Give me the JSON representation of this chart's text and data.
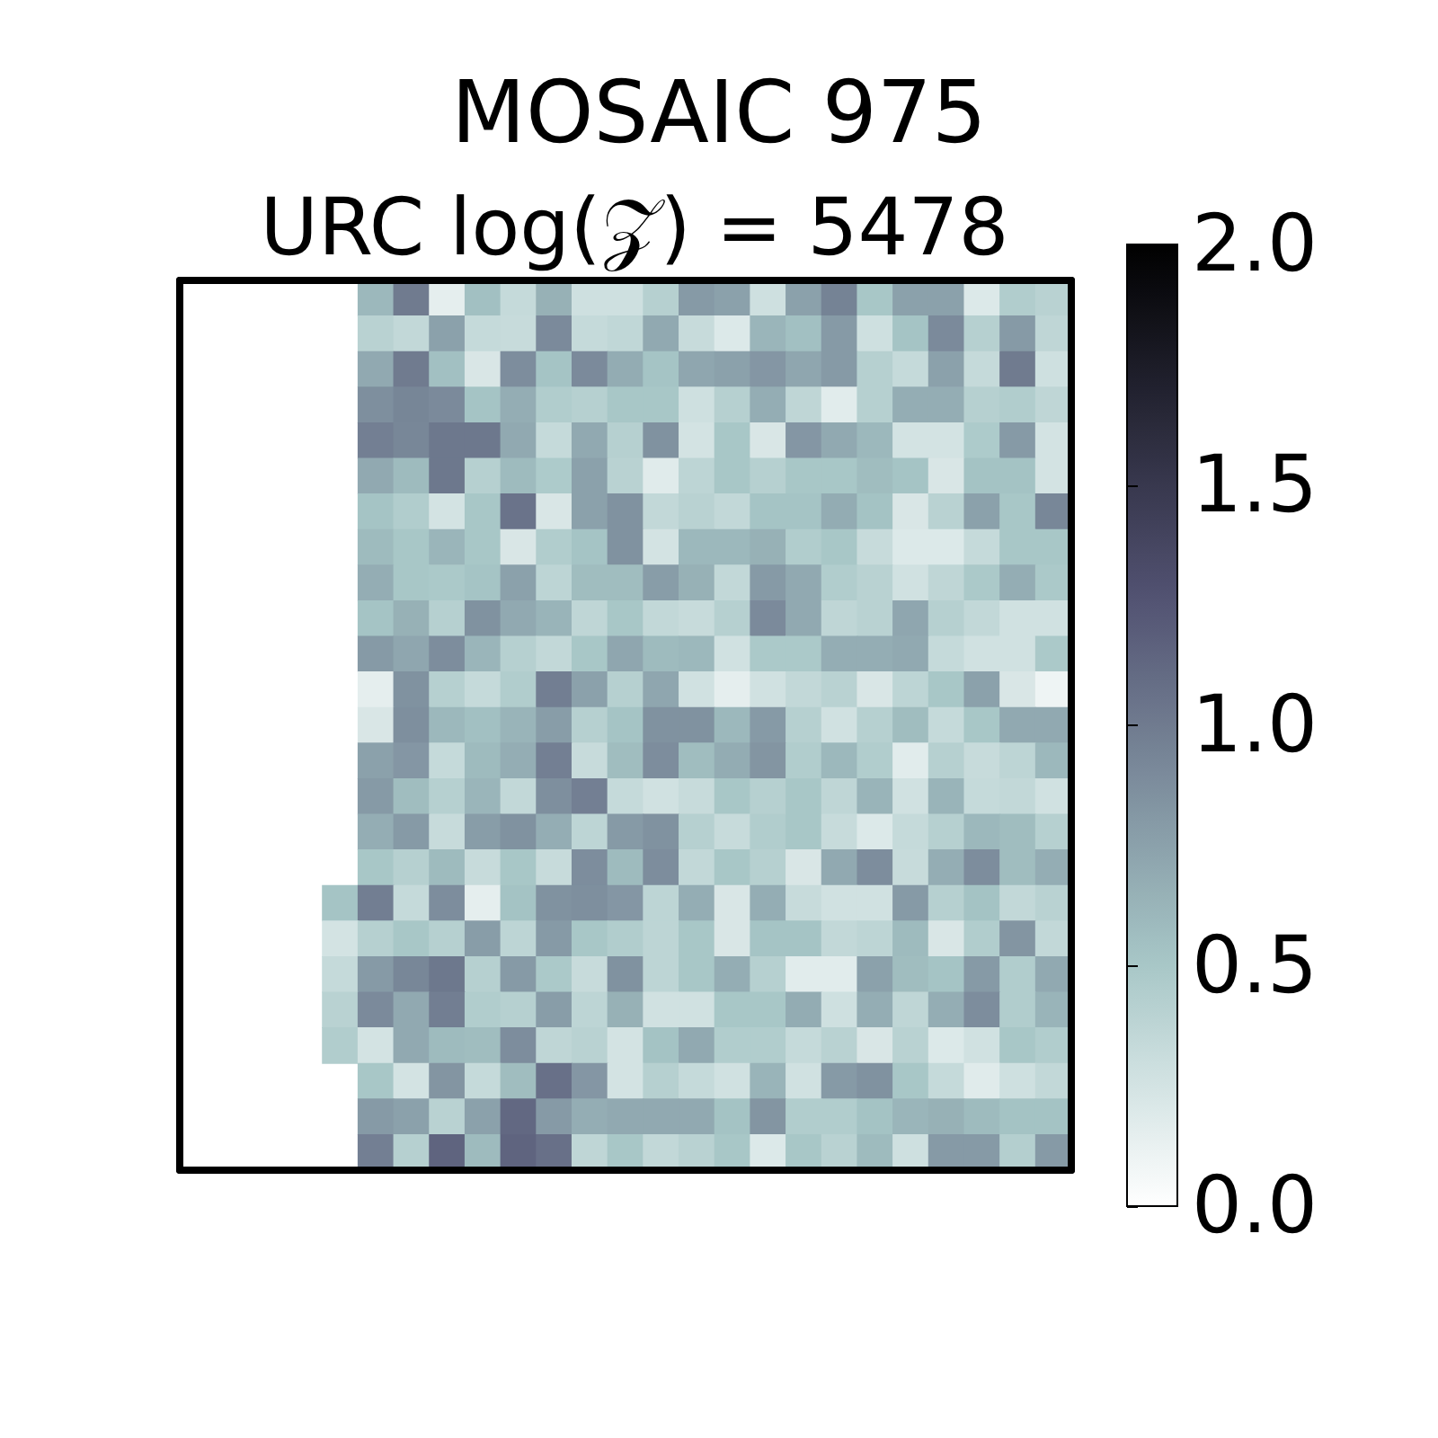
{
  "chart_data": {
    "type": "heatmap",
    "title": "MOSAIC 975",
    "subtitle": "URC log(𝒵) = 5478",
    "categories": [
      null,
      null,
      null,
      null,
      null,
      null,
      null,
      null,
      null,
      null,
      null,
      null,
      null,
      null,
      null,
      null,
      null,
      null,
      null,
      null,
      null
    ],
    "y_categories": [
      null,
      null,
      null,
      null,
      null,
      null,
      null,
      null,
      null,
      null,
      null,
      null,
      null,
      null,
      null,
      null,
      null,
      null,
      null,
      null,
      null,
      null,
      null,
      null,
      null
    ],
    "cells": [
      [
        null,
        0.6,
        1.0,
        0.15,
        0.55,
        0.33,
        0.65,
        0.28,
        0.28,
        0.42,
        0.8,
        0.75,
        0.28,
        0.75,
        0.95,
        0.5,
        0.75,
        0.75,
        0.2,
        0.45,
        0.4
      ],
      [
        null,
        0.4,
        0.35,
        0.75,
        0.33,
        0.32,
        0.9,
        0.33,
        0.36,
        0.7,
        0.32,
        0.2,
        0.62,
        0.55,
        0.8,
        0.28,
        0.52,
        0.9,
        0.42,
        0.8,
        0.37
      ],
      [
        null,
        0.7,
        1.0,
        0.55,
        0.22,
        0.88,
        0.52,
        0.9,
        0.68,
        0.52,
        0.72,
        0.75,
        0.82,
        0.72,
        0.8,
        0.42,
        0.33,
        0.75,
        0.33,
        1.0,
        0.28
      ],
      [
        null,
        0.87,
        0.93,
        0.9,
        0.52,
        0.67,
        0.45,
        0.42,
        0.5,
        0.5,
        0.28,
        0.42,
        0.67,
        0.37,
        0.17,
        0.42,
        0.67,
        0.67,
        0.42,
        0.45,
        0.37
      ],
      [
        null,
        0.97,
        0.92,
        1.02,
        1.02,
        0.7,
        0.33,
        0.7,
        0.42,
        0.85,
        0.25,
        0.5,
        0.22,
        0.82,
        0.7,
        0.6,
        0.25,
        0.25,
        0.47,
        0.8,
        0.25
      ],
      [
        null,
        0.7,
        0.58,
        1.02,
        0.42,
        0.58,
        0.47,
        0.75,
        0.4,
        0.18,
        0.38,
        0.5,
        0.42,
        0.5,
        0.5,
        0.57,
        0.52,
        0.22,
        0.53,
        0.53,
        0.25
      ],
      [
        null,
        0.52,
        0.45,
        0.25,
        0.5,
        1.05,
        0.22,
        0.75,
        0.85,
        0.35,
        0.4,
        0.35,
        0.52,
        0.52,
        0.68,
        0.53,
        0.22,
        0.4,
        0.75,
        0.5,
        0.92
      ],
      [
        null,
        0.58,
        0.5,
        0.62,
        0.5,
        0.22,
        0.45,
        0.52,
        0.85,
        0.25,
        0.6,
        0.6,
        0.65,
        0.45,
        0.5,
        0.32,
        0.2,
        0.2,
        0.33,
        0.5,
        0.5
      ],
      [
        null,
        0.67,
        0.5,
        0.48,
        0.52,
        0.75,
        0.38,
        0.57,
        0.57,
        0.78,
        0.65,
        0.35,
        0.8,
        0.7,
        0.45,
        0.4,
        0.27,
        0.37,
        0.48,
        0.67,
        0.48
      ],
      [
        null,
        0.52,
        0.65,
        0.42,
        0.85,
        0.7,
        0.63,
        0.37,
        0.5,
        0.35,
        0.32,
        0.42,
        0.9,
        0.7,
        0.37,
        0.4,
        0.72,
        0.42,
        0.35,
        0.27,
        0.27
      ],
      [
        null,
        0.8,
        0.72,
        0.88,
        0.62,
        0.42,
        0.35,
        0.5,
        0.72,
        0.58,
        0.6,
        0.27,
        0.48,
        0.48,
        0.67,
        0.67,
        0.7,
        0.33,
        0.27,
        0.27,
        0.48
      ],
      [
        null,
        0.15,
        0.85,
        0.42,
        0.33,
        0.45,
        0.98,
        0.75,
        0.42,
        0.72,
        0.27,
        0.15,
        0.27,
        0.35,
        0.4,
        0.22,
        0.38,
        0.5,
        0.75,
        0.22,
        0.1
      ],
      [
        null,
        0.22,
        0.87,
        0.6,
        0.55,
        0.63,
        0.78,
        0.42,
        0.52,
        0.85,
        0.85,
        0.6,
        0.8,
        0.42,
        0.27,
        0.42,
        0.57,
        0.33,
        0.5,
        0.7,
        0.7
      ],
      [
        null,
        0.75,
        0.82,
        0.33,
        0.58,
        0.67,
        0.97,
        0.32,
        0.57,
        0.88,
        0.57,
        0.68,
        0.83,
        0.45,
        0.6,
        0.45,
        0.17,
        0.42,
        0.32,
        0.38,
        0.6
      ],
      [
        null,
        0.8,
        0.57,
        0.42,
        0.62,
        0.35,
        0.87,
        0.97,
        0.33,
        0.27,
        0.32,
        0.5,
        0.42,
        0.5,
        0.37,
        0.63,
        0.27,
        0.63,
        0.33,
        0.35,
        0.27
      ],
      [
        null,
        0.67,
        0.8,
        0.32,
        0.78,
        0.85,
        0.67,
        0.38,
        0.8,
        0.85,
        0.42,
        0.32,
        0.45,
        0.5,
        0.32,
        0.2,
        0.33,
        0.42,
        0.6,
        0.57,
        0.42
      ],
      [
        null,
        0.5,
        0.42,
        0.58,
        0.32,
        0.5,
        0.32,
        0.88,
        0.58,
        0.88,
        0.35,
        0.5,
        0.42,
        0.22,
        0.7,
        0.88,
        0.32,
        0.67,
        0.88,
        0.57,
        0.67
      ],
      [
        0.52,
        0.98,
        0.33,
        0.88,
        0.15,
        0.53,
        0.85,
        0.87,
        0.82,
        0.38,
        0.67,
        0.22,
        0.67,
        0.32,
        0.27,
        0.27,
        0.8,
        0.42,
        0.53,
        0.35,
        0.4
      ],
      [
        0.25,
        0.42,
        0.5,
        0.42,
        0.78,
        0.38,
        0.8,
        0.5,
        0.45,
        0.38,
        0.5,
        0.22,
        0.52,
        0.52,
        0.35,
        0.38,
        0.58,
        0.22,
        0.45,
        0.83,
        0.35
      ],
      [
        0.33,
        0.8,
        0.92,
        1.02,
        0.42,
        0.8,
        0.48,
        0.32,
        0.85,
        0.38,
        0.5,
        0.67,
        0.42,
        0.17,
        0.17,
        0.75,
        0.57,
        0.52,
        0.8,
        0.45,
        0.7
      ],
      [
        0.4,
        0.9,
        0.7,
        0.98,
        0.45,
        0.42,
        0.78,
        0.38,
        0.65,
        0.27,
        0.27,
        0.5,
        0.5,
        0.68,
        0.28,
        0.67,
        0.37,
        0.67,
        0.88,
        0.45,
        0.63
      ],
      [
        0.45,
        0.25,
        0.7,
        0.58,
        0.57,
        0.88,
        0.37,
        0.4,
        0.25,
        0.53,
        0.7,
        0.45,
        0.45,
        0.33,
        0.4,
        0.22,
        0.4,
        0.2,
        0.27,
        0.5,
        0.45
      ],
      [
        null,
        0.5,
        0.25,
        0.83,
        0.33,
        0.57,
        1.07,
        0.82,
        0.25,
        0.42,
        0.33,
        0.27,
        0.63,
        0.27,
        0.8,
        0.85,
        0.5,
        0.33,
        0.18,
        0.28,
        0.35
      ],
      [
        null,
        0.8,
        0.75,
        0.4,
        0.75,
        1.12,
        0.8,
        0.67,
        0.7,
        0.7,
        0.7,
        0.53,
        0.83,
        0.45,
        0.45,
        0.53,
        0.62,
        0.65,
        0.58,
        0.53,
        0.53
      ],
      [
        null,
        0.97,
        0.42,
        1.15,
        0.58,
        1.15,
        1.07,
        0.37,
        0.5,
        0.35,
        0.4,
        0.5,
        0.2,
        0.5,
        0.4,
        0.58,
        0.28,
        0.8,
        0.8,
        0.43,
        0.8
      ]
    ],
    "clim": [
      0,
      2
    ],
    "cticks": [
      {
        "value": 0,
        "label": "0.0"
      },
      {
        "value": 0.5,
        "label": "0.5"
      },
      {
        "value": 1,
        "label": "1.0"
      },
      {
        "value": 1.5,
        "label": "1.5"
      },
      {
        "value": 2,
        "label": "2.0"
      }
    ]
  }
}
